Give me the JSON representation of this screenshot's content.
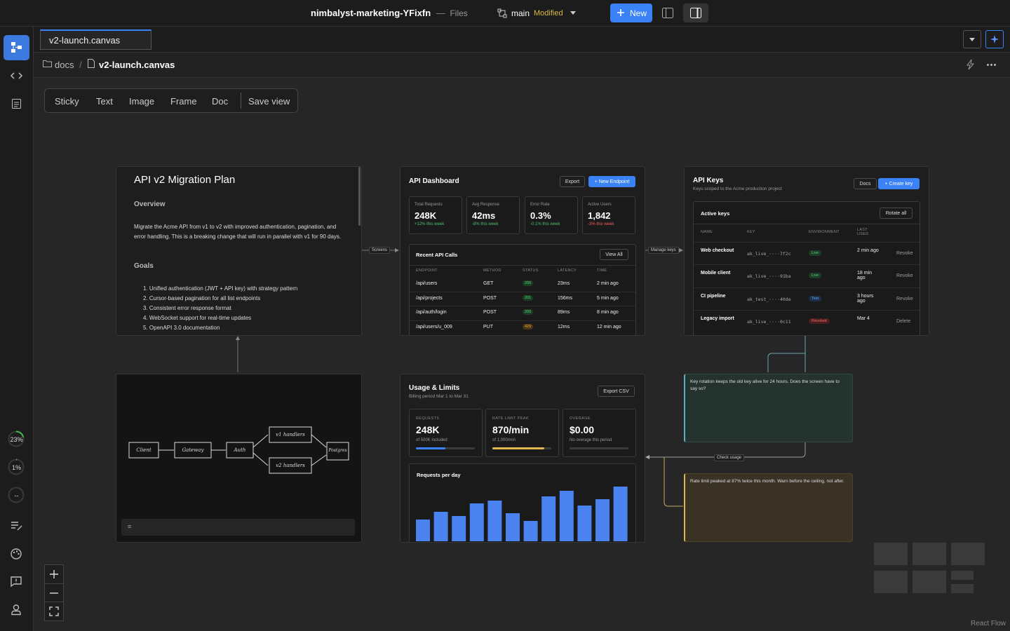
{
  "topbar": {
    "project": "nimbalyst-marketing-YFixfn",
    "separator": "—",
    "section": "Files",
    "branch": "main",
    "branch_status": "Modified",
    "new_button": "New"
  },
  "sidebar": {
    "indicators": [
      "23%",
      "1%",
      "--"
    ]
  },
  "tab": {
    "title": "v2-launch.canvas"
  },
  "breadcrumb": {
    "folder": "docs",
    "separator": "/",
    "file": "v2-launch.canvas"
  },
  "toolbar": {
    "tools": [
      "Sticky",
      "Text",
      "Image",
      "Frame",
      "Doc"
    ],
    "save": "Save view"
  },
  "doc_node": {
    "title": "API v2 Migration Plan",
    "overview_heading": "Overview",
    "overview": "Migrate the Acme API from v1 to v2 with improved authentication, pagination, and error handling. This is a breaking change that will run in parallel with v1 for 90 days.",
    "goals_heading": "Goals",
    "goals": [
      "1. Unified authentication (JWT + API key) with strategy pattern",
      "2. Cursor-based pagination for all list endpoints",
      "3. Consistent error response format",
      "4. WebSocket support for real-time updates",
      "5. OpenAPI 3.0 documentation"
    ]
  },
  "dashboard": {
    "title": "API Dashboard",
    "export": "Export",
    "new_endpoint": "+ New Endpoint",
    "stats": [
      {
        "label": "Total Requests",
        "value": "248K",
        "change": "+12% this week"
      },
      {
        "label": "Avg Response",
        "value": "42ms",
        "change": "-8% this week"
      },
      {
        "label": "Error Rate",
        "value": "0.3%",
        "change": "-0.1% this week"
      },
      {
        "label": "Active Users",
        "value": "1,842",
        "change": "-3% this week"
      }
    ],
    "table": {
      "title": "Recent API Calls",
      "view_all": "View All",
      "columns": [
        "ENDPOINT",
        "METHOD",
        "STATUS",
        "LATENCY",
        "TIME"
      ],
      "rows": [
        [
          "/api/users",
          "GET",
          "200",
          "23ms",
          "2 min ago"
        ],
        [
          "/api/projects",
          "POST",
          "201",
          "156ms",
          "5 min ago"
        ],
        [
          "/api/auth/login",
          "POST",
          "200",
          "89ms",
          "8 min ago"
        ],
        [
          "/api/users/u_009",
          "PUT",
          "429",
          "12ms",
          "12 min ago"
        ]
      ]
    }
  },
  "keys": {
    "title": "API Keys",
    "subtitle": "Keys scoped to the Acme production project",
    "docs": "Docs",
    "create": "+ Create key",
    "panel_title": "Active keys",
    "rotate": "Rotate all",
    "columns": [
      "NAME",
      "KEY",
      "ENVIRONMENT",
      "LAST USED"
    ],
    "rows": [
      [
        "Web checkout",
        "ak_live_····7f2c",
        "Live",
        "2 min ago",
        "Revoke"
      ],
      [
        "Mobile client",
        "ak_live_····91ba",
        "Live",
        "18 min ago",
        "Revoke"
      ],
      [
        "CI pipeline",
        "ak_test_····40de",
        "Test",
        "3 hours ago",
        "Revoke"
      ],
      [
        "Legacy import",
        "ak_live_····0c11",
        "Revoked",
        "Mar 4",
        "Delete"
      ]
    ]
  },
  "diagram": {
    "nodes": [
      "Client",
      "Gateway",
      "Auth",
      "v1 handlers",
      "v2 handlers",
      "Postgres"
    ],
    "caption": "≡"
  },
  "usage": {
    "title": "Usage & Limits",
    "subtitle": "Billing period Mar 1 to Mar 31",
    "export": "Export CSV",
    "metrics": [
      {
        "label": "REQUESTS",
        "value": "248K",
        "note": "of 500K included"
      },
      {
        "label": "RATE LIMIT PEAK",
        "value": "870/min",
        "note": "of 1,000/min"
      },
      {
        "label": "OVERAGE",
        "value": "$0.00",
        "note": "No overage this period"
      }
    ],
    "chart": {
      "type": "bar",
      "title": "Requests per day",
      "color": "#4a82ef",
      "values": [
        31,
        42,
        36,
        54,
        58,
        40,
        29,
        64,
        72,
        51,
        60,
        78
      ]
    }
  },
  "notes": [
    "Key rotation keeps the old key alive for 24 hours. Does the screen have to say so?",
    "Rate limit peaked at 87% twice this month. Warn before the ceiling, not after."
  ],
  "edges": [
    "Screens",
    "Manage keys",
    "Check usage"
  ],
  "footer": "React Flow"
}
